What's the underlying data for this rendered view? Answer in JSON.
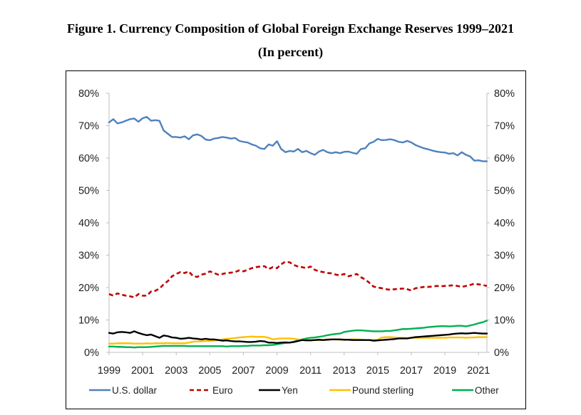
{
  "figure": {
    "title": "Figure 1. Currency Composition of Global Foreign Exchange Reserves 1999–2021",
    "subtitle": "(In percent)"
  },
  "chart_data": {
    "type": "line",
    "title": "Figure 1. Currency Composition of Global Foreign Exchange Reserves 1999–2021",
    "subtitle": "(In percent)",
    "xlabel": "",
    "ylabel": "",
    "xlim": [
      1999,
      2021.5
    ],
    "ylim": [
      0,
      80
    ],
    "x_ticks": [
      1999,
      2001,
      2003,
      2005,
      2007,
      2009,
      2011,
      2013,
      2015,
      2017,
      2019,
      2021
    ],
    "x_tick_labels": [
      "1999",
      "2001",
      "2003",
      "2005",
      "2007",
      "2009",
      "2011",
      "2013",
      "2015",
      "2017",
      "2019",
      "2021"
    ],
    "y_ticks": [
      0,
      10,
      20,
      30,
      40,
      50,
      60,
      70,
      80
    ],
    "y_tick_labels": [
      "0%",
      "10%",
      "20%",
      "30%",
      "40%",
      "50%",
      "60%",
      "70%",
      "80%"
    ],
    "secondary_y_axis": true,
    "grid": false,
    "legend_position": "bottom",
    "series": [
      {
        "name": "U.S. dollar",
        "color": "#4f81bd",
        "dash": "solid",
        "x": [
          1999.0,
          1999.25,
          1999.5,
          1999.75,
          2000.0,
          2000.25,
          2000.5,
          2000.75,
          2001.0,
          2001.25,
          2001.5,
          2001.75,
          2002.0,
          2002.25,
          2002.5,
          2002.75,
          2003.0,
          2003.25,
          2003.5,
          2003.75,
          2004.0,
          2004.25,
          2004.5,
          2004.75,
          2005.0,
          2005.25,
          2005.5,
          2005.75,
          2006.0,
          2006.25,
          2006.5,
          2006.75,
          2007.0,
          2007.25,
          2007.5,
          2007.75,
          2008.0,
          2008.25,
          2008.5,
          2008.75,
          2009.0,
          2009.25,
          2009.5,
          2009.75,
          2010.0,
          2010.25,
          2010.5,
          2010.75,
          2011.0,
          2011.25,
          2011.5,
          2011.75,
          2012.0,
          2012.25,
          2012.5,
          2012.75,
          2013.0,
          2013.25,
          2013.5,
          2013.75,
          2014.0,
          2014.25,
          2014.5,
          2014.75,
          2015.0,
          2015.25,
          2015.5,
          2015.75,
          2016.0,
          2016.25,
          2016.5,
          2016.75,
          2017.0,
          2017.25,
          2017.5,
          2017.75,
          2018.0,
          2018.25,
          2018.5,
          2018.75,
          2019.0,
          2019.25,
          2019.5,
          2019.75,
          2020.0,
          2020.25,
          2020.5,
          2020.75,
          2021.0,
          2021.25,
          2021.5
        ],
        "values": [
          71.0,
          72.0,
          70.7,
          71.0,
          71.5,
          72.0,
          72.2,
          71.2,
          72.3,
          72.7,
          71.5,
          71.7,
          71.5,
          68.5,
          67.5,
          66.5,
          66.5,
          66.3,
          66.7,
          65.8,
          67.0,
          67.3,
          66.8,
          65.7,
          65.5,
          66.0,
          66.2,
          66.5,
          66.3,
          66.0,
          66.2,
          65.3,
          65.0,
          64.8,
          64.2,
          63.8,
          63.0,
          62.8,
          64.2,
          63.8,
          65.2,
          62.8,
          61.8,
          62.2,
          62.0,
          62.8,
          61.8,
          62.2,
          61.5,
          61.0,
          62.0,
          62.5,
          61.8,
          61.5,
          61.8,
          61.5,
          61.9,
          62.0,
          61.6,
          61.3,
          62.8,
          63.0,
          64.5,
          65.0,
          65.9,
          65.5,
          65.6,
          65.8,
          65.5,
          65.0,
          64.8,
          65.3,
          64.8,
          64.0,
          63.5,
          63.0,
          62.7,
          62.3,
          62.0,
          61.8,
          61.7,
          61.3,
          61.5,
          60.8,
          61.8,
          61.0,
          60.5,
          59.2,
          59.3,
          59.0,
          59.0
        ]
      },
      {
        "name": "Euro",
        "color": "#c00000",
        "dash": "dashed",
        "x": [
          1999.0,
          1999.25,
          1999.5,
          1999.75,
          2000.0,
          2000.25,
          2000.5,
          2000.75,
          2001.0,
          2001.25,
          2001.5,
          2001.75,
          2002.0,
          2002.25,
          2002.5,
          2002.75,
          2003.0,
          2003.25,
          2003.5,
          2003.75,
          2004.0,
          2004.25,
          2004.5,
          2004.75,
          2005.0,
          2005.25,
          2005.5,
          2005.75,
          2006.0,
          2006.25,
          2006.5,
          2006.75,
          2007.0,
          2007.25,
          2007.5,
          2007.75,
          2008.0,
          2008.25,
          2008.5,
          2008.75,
          2009.0,
          2009.25,
          2009.5,
          2009.75,
          2010.0,
          2010.25,
          2010.5,
          2010.75,
          2011.0,
          2011.25,
          2011.5,
          2011.75,
          2012.0,
          2012.25,
          2012.5,
          2012.75,
          2013.0,
          2013.25,
          2013.5,
          2013.75,
          2014.0,
          2014.25,
          2014.5,
          2014.75,
          2015.0,
          2015.25,
          2015.5,
          2015.75,
          2016.0,
          2016.25,
          2016.5,
          2016.75,
          2017.0,
          2017.25,
          2017.5,
          2017.75,
          2018.0,
          2018.25,
          2018.5,
          2018.75,
          2019.0,
          2019.25,
          2019.5,
          2019.75,
          2020.0,
          2020.25,
          2020.5,
          2020.75,
          2021.0,
          2021.25,
          2021.5
        ],
        "values": [
          18.0,
          17.5,
          18.2,
          17.8,
          17.5,
          17.3,
          17.0,
          18.0,
          17.5,
          17.5,
          18.8,
          19.0,
          19.7,
          21.0,
          22.0,
          23.5,
          24.2,
          24.8,
          24.5,
          25.0,
          23.5,
          23.3,
          24.0,
          24.3,
          25.0,
          24.5,
          24.0,
          24.2,
          24.5,
          24.6,
          24.8,
          25.3,
          25.0,
          25.5,
          26.0,
          26.3,
          26.5,
          26.6,
          25.7,
          26.3,
          26.0,
          27.2,
          28.0,
          27.8,
          27.0,
          26.5,
          26.3,
          26.0,
          26.5,
          25.5,
          25.0,
          24.8,
          24.5,
          24.4,
          24.0,
          23.8,
          24.2,
          23.5,
          23.8,
          24.2,
          23.2,
          22.5,
          21.5,
          20.3,
          20.0,
          19.8,
          19.5,
          19.3,
          19.5,
          19.6,
          19.7,
          19.5,
          19.1,
          19.8,
          20.0,
          20.2,
          20.2,
          20.3,
          20.5,
          20.4,
          20.5,
          20.6,
          20.7,
          20.5,
          20.2,
          20.5,
          20.8,
          21.2,
          21.0,
          20.8,
          20.5
        ]
      },
      {
        "name": "Yen",
        "color": "#000000",
        "dash": "solid",
        "x": [
          1999.0,
          1999.25,
          1999.5,
          1999.75,
          2000.0,
          2000.25,
          2000.5,
          2000.75,
          2001.0,
          2001.25,
          2001.5,
          2001.75,
          2002.0,
          2002.25,
          2002.5,
          2002.75,
          2003.0,
          2003.25,
          2003.5,
          2003.75,
          2004.0,
          2004.25,
          2004.5,
          2004.75,
          2005.0,
          2005.25,
          2005.5,
          2005.75,
          2006.0,
          2006.25,
          2006.5,
          2006.75,
          2007.0,
          2007.25,
          2007.5,
          2007.75,
          2008.0,
          2008.25,
          2008.5,
          2008.75,
          2009.0,
          2009.25,
          2009.5,
          2009.75,
          2010.0,
          2010.25,
          2010.5,
          2010.75,
          2011.0,
          2011.25,
          2011.5,
          2011.75,
          2012.0,
          2012.25,
          2012.5,
          2012.75,
          2013.0,
          2013.25,
          2013.5,
          2013.75,
          2014.0,
          2014.25,
          2014.5,
          2014.75,
          2015.0,
          2015.25,
          2015.5,
          2015.75,
          2016.0,
          2016.25,
          2016.5,
          2016.75,
          2017.0,
          2017.25,
          2017.5,
          2017.75,
          2018.0,
          2018.25,
          2018.5,
          2018.75,
          2019.0,
          2019.25,
          2019.5,
          2019.75,
          2020.0,
          2020.25,
          2020.5,
          2020.75,
          2021.0,
          2021.25,
          2021.5
        ],
        "values": [
          6.0,
          5.8,
          6.2,
          6.3,
          6.2,
          6.0,
          6.5,
          6.0,
          5.6,
          5.3,
          5.5,
          5.0,
          4.5,
          5.2,
          5.0,
          4.6,
          4.5,
          4.2,
          4.3,
          4.5,
          4.3,
          4.2,
          4.0,
          4.2,
          4.0,
          4.0,
          3.8,
          3.6,
          3.7,
          3.5,
          3.4,
          3.4,
          3.3,
          3.2,
          3.2,
          3.3,
          3.5,
          3.4,
          3.0,
          3.0,
          2.9,
          3.0,
          3.1,
          3.0,
          3.2,
          3.5,
          3.8,
          3.7,
          3.7,
          3.8,
          3.9,
          3.8,
          3.9,
          4.0,
          4.0,
          4.0,
          3.9,
          3.9,
          3.8,
          3.8,
          3.8,
          3.8,
          3.8,
          3.6,
          3.7,
          3.8,
          3.9,
          4.0,
          4.1,
          4.3,
          4.3,
          4.3,
          4.5,
          4.7,
          4.8,
          4.9,
          5.0,
          5.1,
          5.2,
          5.3,
          5.4,
          5.5,
          5.7,
          5.8,
          5.9,
          5.8,
          5.9,
          6.0,
          5.9,
          5.8,
          5.8
        ]
      },
      {
        "name": "Pound sterling",
        "color": "#ffc000",
        "dash": "solid",
        "x": [
          1999.0,
          1999.25,
          1999.5,
          1999.75,
          2000.0,
          2000.25,
          2000.5,
          2000.75,
          2001.0,
          2001.25,
          2001.5,
          2001.75,
          2002.0,
          2002.25,
          2002.5,
          2002.75,
          2003.0,
          2003.25,
          2003.5,
          2003.75,
          2004.0,
          2004.25,
          2004.5,
          2004.75,
          2005.0,
          2005.25,
          2005.5,
          2005.75,
          2006.0,
          2006.25,
          2006.5,
          2006.75,
          2007.0,
          2007.25,
          2007.5,
          2007.75,
          2008.0,
          2008.25,
          2008.5,
          2008.75,
          2009.0,
          2009.25,
          2009.5,
          2009.75,
          2010.0,
          2010.25,
          2010.5,
          2010.75,
          2011.0,
          2011.25,
          2011.5,
          2011.75,
          2012.0,
          2012.25,
          2012.5,
          2012.75,
          2013.0,
          2013.25,
          2013.5,
          2013.75,
          2014.0,
          2014.25,
          2014.5,
          2014.75,
          2015.0,
          2015.25,
          2015.5,
          2015.75,
          2016.0,
          2016.25,
          2016.5,
          2016.75,
          2017.0,
          2017.25,
          2017.5,
          2017.75,
          2018.0,
          2018.25,
          2018.5,
          2018.75,
          2019.0,
          2019.25,
          2019.5,
          2019.75,
          2020.0,
          2020.25,
          2020.5,
          2020.75,
          2021.0,
          2021.25,
          2021.5
        ],
        "values": [
          2.7,
          2.7,
          2.8,
          2.8,
          2.8,
          2.8,
          2.7,
          2.7,
          2.7,
          2.8,
          2.7,
          2.8,
          2.8,
          2.8,
          2.9,
          2.8,
          2.8,
          2.8,
          2.8,
          3.0,
          3.3,
          3.4,
          3.4,
          3.5,
          3.5,
          3.6,
          3.8,
          4.0,
          4.2,
          4.3,
          4.4,
          4.6,
          4.7,
          4.8,
          4.9,
          4.8,
          4.8,
          4.8,
          4.5,
          4.0,
          4.2,
          4.3,
          4.3,
          4.3,
          4.2,
          4.0,
          3.9,
          3.8,
          3.8,
          3.8,
          3.8,
          3.8,
          4.0,
          4.0,
          4.0,
          3.9,
          3.9,
          3.9,
          4.0,
          4.0,
          3.9,
          3.8,
          3.8,
          3.8,
          3.9,
          4.6,
          4.7,
          4.7,
          4.6,
          4.5,
          4.5,
          4.4,
          4.5,
          4.5,
          4.5,
          4.5,
          4.5,
          4.5,
          4.5,
          4.5,
          4.5,
          4.6,
          4.6,
          4.6,
          4.6,
          4.5,
          4.6,
          4.6,
          4.7,
          4.7,
          4.7
        ]
      },
      {
        "name": "Other",
        "color": "#00b050",
        "dash": "solid",
        "x": [
          1999.0,
          1999.25,
          1999.5,
          1999.75,
          2000.0,
          2000.25,
          2000.5,
          2000.75,
          2001.0,
          2001.25,
          2001.5,
          2001.75,
          2002.0,
          2002.25,
          2002.5,
          2002.75,
          2003.0,
          2003.25,
          2003.5,
          2003.75,
          2004.0,
          2004.25,
          2004.5,
          2004.75,
          2005.0,
          2005.25,
          2005.5,
          2005.75,
          2006.0,
          2006.25,
          2006.5,
          2006.75,
          2007.0,
          2007.25,
          2007.5,
          2007.75,
          2008.0,
          2008.25,
          2008.5,
          2008.75,
          2009.0,
          2009.25,
          2009.5,
          2009.75,
          2010.0,
          2010.25,
          2010.5,
          2010.75,
          2011.0,
          2011.25,
          2011.5,
          2011.75,
          2012.0,
          2012.25,
          2012.5,
          2012.75,
          2013.0,
          2013.25,
          2013.5,
          2013.75,
          2014.0,
          2014.25,
          2014.5,
          2014.75,
          2015.0,
          2015.25,
          2015.5,
          2015.75,
          2016.0,
          2016.25,
          2016.5,
          2016.75,
          2017.0,
          2017.25,
          2017.5,
          2017.75,
          2018.0,
          2018.25,
          2018.5,
          2018.75,
          2019.0,
          2019.25,
          2019.5,
          2019.75,
          2020.0,
          2020.25,
          2020.5,
          2020.75,
          2021.0,
          2021.25,
          2021.5
        ],
        "values": [
          1.8,
          1.8,
          1.7,
          1.7,
          1.6,
          1.6,
          1.5,
          1.6,
          1.6,
          1.6,
          1.7,
          1.8,
          1.9,
          2.0,
          2.0,
          2.0,
          2.0,
          2.0,
          2.0,
          1.9,
          1.9,
          1.9,
          1.9,
          1.9,
          1.9,
          1.9,
          1.9,
          1.9,
          1.8,
          1.9,
          1.9,
          1.9,
          2.0,
          2.0,
          2.1,
          2.1,
          2.1,
          2.2,
          2.2,
          2.3,
          2.5,
          2.7,
          2.9,
          3.0,
          3.3,
          3.7,
          4.0,
          4.3,
          4.5,
          4.6,
          4.8,
          5.0,
          5.3,
          5.5,
          5.7,
          5.8,
          6.3,
          6.5,
          6.7,
          6.8,
          6.8,
          6.7,
          6.6,
          6.5,
          6.5,
          6.5,
          6.6,
          6.6,
          6.8,
          7.0,
          7.2,
          7.2,
          7.3,
          7.4,
          7.5,
          7.6,
          7.8,
          7.9,
          8.0,
          8.1,
          8.1,
          8.0,
          8.1,
          8.2,
          8.2,
          8.0,
          8.3,
          8.6,
          9.0,
          9.3,
          9.8
        ]
      }
    ]
  }
}
